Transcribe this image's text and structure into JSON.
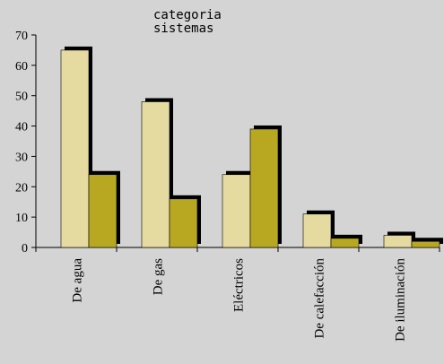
{
  "chart_data": {
    "type": "bar",
    "title_lines": [
      "categoria",
      "sistemas"
    ],
    "xlabel": "",
    "ylabel": "",
    "categories": [
      "De agua",
      "De gas",
      "Eléctricos",
      "De calefacción",
      "De iluminación"
    ],
    "series": [
      {
        "values": [
          65,
          48,
          24,
          11,
          4
        ],
        "color": "#e5dba0"
      },
      {
        "values": [
          24,
          16,
          39,
          3,
          2
        ],
        "color": "#b8a821"
      }
    ],
    "ylim": [
      0,
      70
    ],
    "yticks": [
      0,
      10,
      20,
      30,
      40,
      50,
      60,
      70
    ],
    "grid": false,
    "legend": "none",
    "shadow_color": "#000000",
    "background": "#d4d4d4"
  }
}
